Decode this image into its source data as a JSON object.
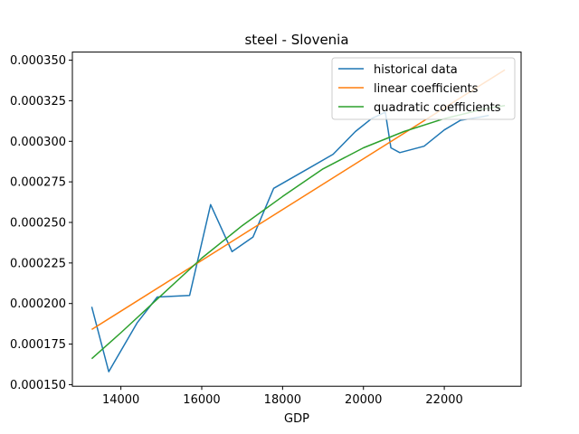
{
  "chart_data": {
    "type": "line",
    "title": "steel - Slovenia",
    "xlabel": "GDP",
    "ylabel": "",
    "xlim": [
      12800,
      23900
    ],
    "ylim": [
      0.000149,
      0.000355
    ],
    "x_ticks": [
      14000,
      16000,
      18000,
      20000,
      22000
    ],
    "x_tick_labels": [
      "14000",
      "16000",
      "18000",
      "20000",
      "22000"
    ],
    "y_ticks": [
      0.00015,
      0.000175,
      0.0002,
      0.000225,
      0.00025,
      0.000275,
      0.0003,
      0.000325,
      0.00035
    ],
    "y_tick_labels": [
      "0.000150",
      "0.000175",
      "0.000200",
      "0.000225",
      "0.000250",
      "0.000275",
      "0.000300",
      "0.000325",
      "0.000350"
    ],
    "grid": false,
    "legend_position": "top-right",
    "series": [
      {
        "name": "historical data",
        "color": "#1f77b4",
        "x": [
          13280,
          13700,
          14400,
          14900,
          15700,
          16220,
          16750,
          17270,
          17780,
          18620,
          19250,
          19800,
          20200,
          20540,
          20680,
          20900,
          21500,
          22000,
          22400,
          22900,
          23100
        ],
        "y": [
          0.000198,
          0.000158,
          0.000188,
          0.000204,
          0.000205,
          0.000261,
          0.000232,
          0.000241,
          0.000271,
          0.000283,
          0.000292,
          0.000306,
          0.000314,
          0.000318,
          0.000296,
          0.000293,
          0.000297,
          0.000307,
          0.000313,
          0.000315,
          0.000316
        ]
      },
      {
        "name": "linear coefficients",
        "color": "#ff7f0e",
        "x": [
          13280,
          23500
        ],
        "y": [
          0.000184,
          0.000344
        ]
      },
      {
        "name": "quadratic coefficients",
        "color": "#2ca02c",
        "x": [
          13280,
          14000,
          15000,
          16000,
          17000,
          18000,
          19000,
          20000,
          21000,
          22000,
          23000,
          23500
        ],
        "y": [
          0.000166,
          0.000182,
          0.000205,
          0.000228,
          0.000248,
          0.000266,
          0.000283,
          0.000296,
          0.000306,
          0.000314,
          0.00032,
          0.000322
        ]
      }
    ]
  }
}
